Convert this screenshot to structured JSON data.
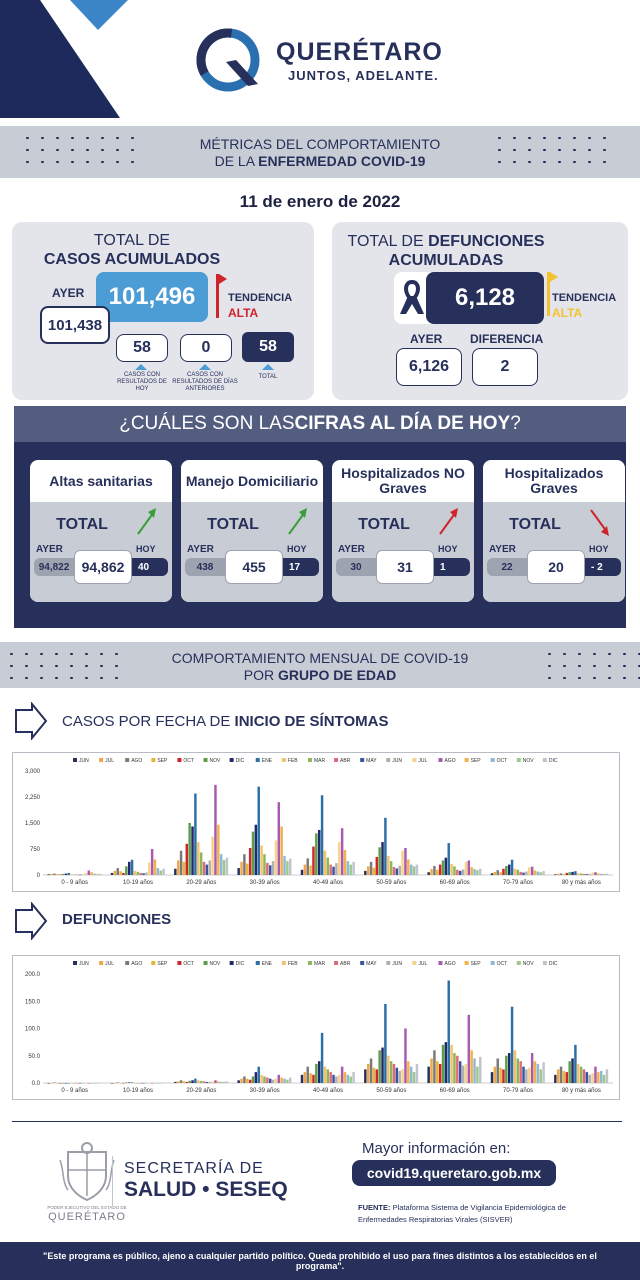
{
  "header": {
    "logo_name": "QUERÉTARO",
    "logo_slogan": "JUNTOS, ADELANTE."
  },
  "banner1": {
    "line1": "MÉTRICAS DEL COMPORTAMIENTO",
    "line2_prefix": "DE LA ",
    "line2_bold": "ENFERMEDAD COVID-19"
  },
  "date": "11 de enero de 2022",
  "cases": {
    "title_line1": "TOTAL DE",
    "title_line2": "CASOS ACUMULADOS",
    "ayer_label": "AYER",
    "ayer_value": "101,438",
    "total": "101,496",
    "tendencia_label": "TENDENCIA",
    "tendencia_value": "ALTA",
    "new_today": "58",
    "new_today_caption": "CASOS CON RESULTADOS DE HOY",
    "prev_days": "0",
    "prev_days_caption": "CASOS CON RESULTADOS DE DÍAS ANTERIORES",
    "total_new": "58",
    "total_new_caption": "TOTAL"
  },
  "deaths": {
    "title_prefix": "TOTAL DE ",
    "title_bold1": "DEFUNCIONES",
    "title_bold2": "ACUMULADAS",
    "total": "6,128",
    "tendencia_label": "TENDENCIA",
    "tendencia_value": "ALTA",
    "ayer_label": "AYER",
    "ayer_value": "6,126",
    "diff_label": "DIFERENCIA",
    "diff_value": "2"
  },
  "today": {
    "question_prefix": "¿CUÁLES SON LAS ",
    "question_bold": "CIFRAS AL DÍA DE HOY",
    "question_suffix": "?",
    "total_label": "TOTAL",
    "ayer_label": "AYER",
    "hoy_label": "HOY",
    "metrics": [
      {
        "title": "Altas sanitarias",
        "ayer": "94,822",
        "total": "94,862",
        "hoy": "40",
        "trend": "up",
        "trend_color": "#3a9d3a"
      },
      {
        "title": "Manejo Domiciliario",
        "ayer": "438",
        "total": "455",
        "hoy": "17",
        "trend": "up",
        "trend_color": "#3a9d3a"
      },
      {
        "title": "Hospitalizados NO Graves",
        "ayer": "30",
        "total": "31",
        "hoy": "1",
        "trend": "up",
        "trend_color": "#d0242b"
      },
      {
        "title": "Hospitalizados Graves",
        "ayer": "22",
        "total": "20",
        "hoy": "- 2",
        "trend": "down",
        "trend_color": "#d0242b"
      }
    ]
  },
  "banner2": {
    "line1": "COMPORTAMIENTO MENSUAL DE COVID-19",
    "line2_prefix": "POR ",
    "line2_bold": "GRUPO DE EDAD"
  },
  "section_cases": {
    "prefix": "CASOS POR FECHA DE ",
    "bold": "INICIO  DE SÍNTOMAS"
  },
  "section_deaths": {
    "bold": "DEFUNCIONES"
  },
  "chart_data": [
    {
      "type": "bar",
      "title": "CASOS POR FECHA DE INICIO DE SÍNTOMAS",
      "categories": [
        "0 - 9 años",
        "10-19 años",
        "20-29 años",
        "30-39 años",
        "40-49 años",
        "50-59 años",
        "60-69 años",
        "70-79 años",
        "80 y más años"
      ],
      "ylim": [
        0,
        3000
      ],
      "yticks": [
        "0",
        "750",
        "1,500",
        "2,250",
        "3,000"
      ],
      "legend_position": "top",
      "series": [
        {
          "name": "JUN",
          "color": "#27305a",
          "values": [
            20,
            60,
            180,
            200,
            150,
            120,
            80,
            50,
            20
          ]
        },
        {
          "name": "JUL",
          "color": "#f2a64a",
          "values": [
            30,
            120,
            420,
            380,
            300,
            250,
            170,
            90,
            35
          ]
        },
        {
          "name": "AGO",
          "color": "#7a7a7a",
          "values": [
            40,
            200,
            700,
            600,
            480,
            380,
            260,
            140,
            45
          ]
        },
        {
          "name": "SEP",
          "color": "#e8b53a",
          "values": [
            25,
            110,
            380,
            330,
            270,
            210,
            150,
            80,
            25
          ]
        },
        {
          "name": "OCT",
          "color": "#d0242b",
          "values": [
            15,
            60,
            900,
            780,
            820,
            520,
            300,
            180,
            60
          ]
        },
        {
          "name": "NOV",
          "color": "#5a9e4a",
          "values": [
            30,
            250,
            1500,
            1250,
            1200,
            800,
            420,
            260,
            80
          ]
        },
        {
          "name": "DIC",
          "color": "#1f2a6b",
          "values": [
            40,
            380,
            1400,
            1450,
            1300,
            950,
            500,
            300,
            90
          ]
        },
        {
          "name": "ENE",
          "color": "#2a6fa8",
          "values": [
            60,
            440,
            2350,
            2550,
            2300,
            1650,
            920,
            440,
            110
          ]
        },
        {
          "name": "FEB",
          "color": "#f5c06a",
          "values": [
            20,
            120,
            950,
            850,
            700,
            550,
            320,
            180,
            50
          ]
        },
        {
          "name": "MAR",
          "color": "#8cb85a",
          "values": [
            15,
            90,
            650,
            600,
            500,
            400,
            250,
            150,
            45
          ]
        },
        {
          "name": "ABR",
          "color": "#e06a7a",
          "values": [
            10,
            60,
            380,
            350,
            300,
            230,
            150,
            90,
            30
          ]
        },
        {
          "name": "MAY",
          "color": "#3a55a0",
          "values": [
            10,
            50,
            300,
            280,
            240,
            190,
            120,
            70,
            25
          ]
        },
        {
          "name": "JUN",
          "color": "#b0b0b0",
          "values": [
            15,
            70,
            420,
            400,
            340,
            270,
            160,
            100,
            30
          ]
        },
        {
          "name": "JUL",
          "color": "#f7d28a",
          "values": [
            60,
            360,
            1100,
            1000,
            950,
            700,
            380,
            220,
            70
          ]
        },
        {
          "name": "AGO",
          "color": "#a85ab0",
          "values": [
            130,
            750,
            2600,
            2100,
            1350,
            780,
            420,
            240,
            80
          ]
        },
        {
          "name": "SEP",
          "color": "#f2b24a",
          "values": [
            80,
            450,
            1450,
            1400,
            720,
            450,
            230,
            130,
            45
          ]
        },
        {
          "name": "OCT",
          "color": "#8fb8d8",
          "values": [
            40,
            200,
            600,
            550,
            400,
            300,
            170,
            100,
            35
          ]
        },
        {
          "name": "NOV",
          "color": "#9fc88a",
          "values": [
            25,
            130,
            430,
            400,
            300,
            250,
            140,
            80,
            30
          ]
        },
        {
          "name": "DIC",
          "color": "#c0c4cc",
          "values": [
            35,
            180,
            500,
            470,
            380,
            300,
            180,
            110,
            40
          ]
        }
      ]
    },
    {
      "type": "bar",
      "title": "DEFUNCIONES",
      "categories": [
        "0 - 9 años",
        "10-19 años",
        "20-29 años",
        "30-39 años",
        "40-49 años",
        "50-59 años",
        "60-69 años",
        "70-79 años",
        "80 y más años"
      ],
      "ylim": [
        0,
        200
      ],
      "yticks": [
        "0.0",
        "50.0",
        "100.0",
        "150.0",
        "200.0"
      ],
      "legend_position": "top",
      "series": [
        {
          "name": "JUN",
          "color": "#27305a",
          "values": [
            0,
            0,
            2,
            5,
            15,
            25,
            30,
            20,
            15
          ]
        },
        {
          "name": "JUL",
          "color": "#f2a64a",
          "values": [
            0,
            0,
            3,
            8,
            20,
            35,
            45,
            30,
            25
          ]
        },
        {
          "name": "AGO",
          "color": "#7a7a7a",
          "values": [
            1,
            1,
            5,
            12,
            30,
            45,
            60,
            45,
            30
          ]
        },
        {
          "name": "SEP",
          "color": "#e8b53a",
          "values": [
            0,
            0,
            3,
            8,
            18,
            28,
            40,
            28,
            22
          ]
        },
        {
          "name": "OCT",
          "color": "#d0242b",
          "values": [
            0,
            0,
            2,
            6,
            15,
            25,
            35,
            25,
            20
          ]
        },
        {
          "name": "NOV",
          "color": "#5a9e4a",
          "values": [
            0,
            1,
            4,
            12,
            35,
            60,
            70,
            50,
            40
          ]
        },
        {
          "name": "DIC",
          "color": "#1f2a6b",
          "values": [
            0,
            1,
            5,
            20,
            40,
            65,
            75,
            55,
            45
          ]
        },
        {
          "name": "ENE",
          "color": "#2a6fa8",
          "values": [
            0,
            1,
            8,
            30,
            92,
            145,
            188,
            140,
            70
          ]
        },
        {
          "name": "FEB",
          "color": "#f5c06a",
          "values": [
            0,
            0,
            5,
            15,
            30,
            50,
            70,
            60,
            35
          ]
        },
        {
          "name": "MAR",
          "color": "#8cb85a",
          "values": [
            0,
            0,
            4,
            12,
            25,
            40,
            55,
            45,
            30
          ]
        },
        {
          "name": "ABR",
          "color": "#e06a7a",
          "values": [
            0,
            0,
            3,
            10,
            20,
            35,
            50,
            40,
            25
          ]
        },
        {
          "name": "MAY",
          "color": "#3a55a0",
          "values": [
            0,
            0,
            2,
            8,
            15,
            28,
            40,
            30,
            20
          ]
        },
        {
          "name": "JUN",
          "color": "#b0b0b0",
          "values": [
            0,
            0,
            2,
            6,
            12,
            22,
            32,
            25,
            15
          ]
        },
        {
          "name": "JUL",
          "color": "#f7d28a",
          "values": [
            0,
            0,
            3,
            8,
            15,
            25,
            35,
            28,
            18
          ]
        },
        {
          "name": "AGO",
          "color": "#a85ab0",
          "values": [
            0,
            0,
            5,
            15,
            30,
            100,
            125,
            55,
            30
          ]
        },
        {
          "name": "SEP",
          "color": "#f2b24a",
          "values": [
            0,
            0,
            3,
            10,
            20,
            40,
            60,
            40,
            20
          ]
        },
        {
          "name": "OCT",
          "color": "#8fb8d8",
          "values": [
            0,
            0,
            2,
            8,
            15,
            30,
            45,
            35,
            22
          ]
        },
        {
          "name": "NOV",
          "color": "#9fc88a",
          "values": [
            0,
            0,
            2,
            6,
            12,
            20,
            30,
            25,
            15
          ]
        },
        {
          "name": "DIC",
          "color": "#c0c4cc",
          "values": [
            0,
            0,
            3,
            10,
            20,
            35,
            48,
            38,
            25
          ]
        }
      ]
    }
  ],
  "footer": {
    "seal_line1": "PODER EJECUTIVO DEL ESTADO DE",
    "seal_line2": "QUERÉTARO",
    "secretaria_line1": "SECRETARÍA DE",
    "secretaria_line2": "SALUD • SESEQ",
    "more_info": "Mayor información en:",
    "url": "covid19.queretaro.gob.mx",
    "fuente_label": "FUENTE:",
    "fuente_text": "Plataforma Sistema  de Vigilancia Epidemiológica de Enfermedades Respiratorias Virales (SISVER)",
    "disclaimer": "\"Este programa es público, ajeno a cualquier partido político. Queda prohibido el uso para fines distintos a los establecidos en el programa\"."
  }
}
